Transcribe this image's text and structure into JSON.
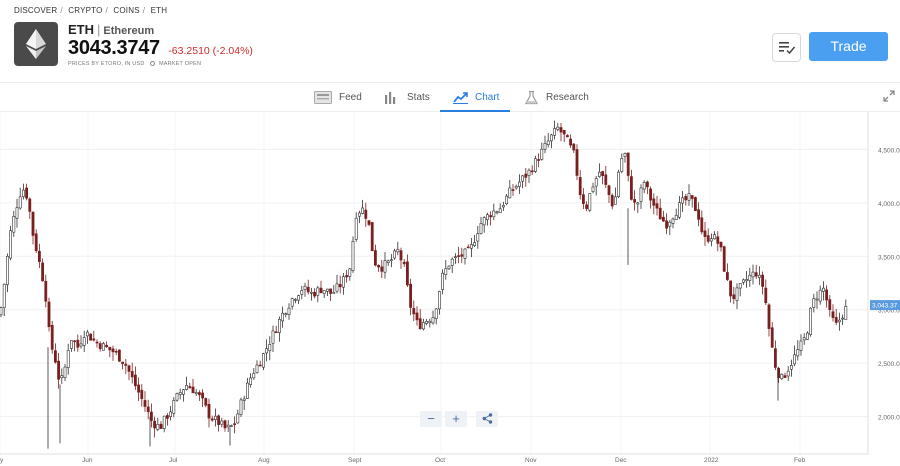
{
  "breadcrumb": [
    "DISCOVER",
    "CRYPTO",
    "COINS",
    "ETH"
  ],
  "breadcrumb_separator": "/",
  "asset": {
    "ticker": "ETH",
    "separator": "|",
    "name": "Ethereum",
    "price": "3043.3747",
    "change": "-63.2510 (-2.04%)",
    "price_source": "PRICES BY ETORO, IN USD",
    "market_status": "MARKET OPEN",
    "logo_icon": "ethereum-logo-icon"
  },
  "actions": {
    "trade_label": "Trade",
    "watchlist_icon": "watchlist-icon"
  },
  "tabs": [
    {
      "label": "Feed",
      "icon": "feed-icon"
    },
    {
      "label": "Stats",
      "icon": "stats-icon"
    },
    {
      "label": "Chart",
      "icon": "chart-icon",
      "active": true
    },
    {
      "label": "Research",
      "icon": "research-icon"
    }
  ],
  "zoom_controls": {
    "zoom_out": "−",
    "zoom_in": "+",
    "share_icon": "share-icon"
  },
  "colors": {
    "accent": "#2a7de1",
    "trade": "#4b9ff1",
    "negative": "#d12b2b",
    "up_candle": "#2f2f2f",
    "down_candle": "#7a1f1f"
  },
  "chart_data": {
    "type": "candlestick",
    "x_tick_labels": [
      "y",
      "Jun",
      "Jul",
      "Aug",
      "Sept",
      "Oct",
      "Nov",
      "Dec",
      "2022",
      "Feb"
    ],
    "y_tick_labels": [
      "4,500.0",
      "4,000.0",
      "3,500.0",
      "3,000.0",
      "2,500.0",
      "2,000.0"
    ],
    "y_ticks": [
      4500,
      4000,
      3500,
      3000,
      2500,
      2000
    ],
    "ylim": [
      1650,
      4850
    ],
    "last_price_label": "3,043.37",
    "last_price": 3043.37,
    "grid": true,
    "close_path": [
      [
        0,
        2950
      ],
      [
        5,
        3300
      ],
      [
        10,
        3700
      ],
      [
        16,
        3950
      ],
      [
        22,
        4150
      ],
      [
        28,
        4050
      ],
      [
        32,
        3750
      ],
      [
        38,
        3500
      ],
      [
        45,
        3200
      ],
      [
        50,
        2700
      ],
      [
        55,
        2550
      ],
      [
        60,
        2300
      ],
      [
        64,
        2400
      ],
      [
        70,
        2750
      ],
      [
        78,
        2650
      ],
      [
        85,
        2800
      ],
      [
        95,
        2700
      ],
      [
        105,
        2650
      ],
      [
        115,
        2600
      ],
      [
        125,
        2500
      ],
      [
        135,
        2300
      ],
      [
        145,
        2100
      ],
      [
        152,
        1950
      ],
      [
        160,
        1900
      ],
      [
        170,
        2050
      ],
      [
        178,
        2200
      ],
      [
        186,
        2300
      ],
      [
        194,
        2250
      ],
      [
        202,
        2150
      ],
      [
        210,
        2000
      ],
      [
        218,
        1950
      ],
      [
        226,
        1880
      ],
      [
        234,
        1920
      ],
      [
        242,
        2150
      ],
      [
        252,
        2400
      ],
      [
        262,
        2550
      ],
      [
        272,
        2750
      ],
      [
        282,
        2950
      ],
      [
        292,
        3100
      ],
      [
        302,
        3200
      ],
      [
        312,
        3150
      ],
      [
        322,
        3200
      ],
      [
        332,
        3150
      ],
      [
        342,
        3250
      ],
      [
        350,
        3400
      ],
      [
        356,
        3900
      ],
      [
        362,
        3950
      ],
      [
        368,
        3850
      ],
      [
        374,
        3450
      ],
      [
        382,
        3400
      ],
      [
        390,
        3450
      ],
      [
        398,
        3550
      ],
      [
        404,
        3400
      ],
      [
        410,
        3050
      ],
      [
        418,
        2850
      ],
      [
        426,
        2900
      ],
      [
        434,
        2950
      ],
      [
        442,
        3300
      ],
      [
        450,
        3450
      ],
      [
        460,
        3500
      ],
      [
        470,
        3550
      ],
      [
        480,
        3800
      ],
      [
        490,
        3900
      ],
      [
        500,
        3950
      ],
      [
        510,
        4100
      ],
      [
        520,
        4200
      ],
      [
        530,
        4300
      ],
      [
        540,
        4450
      ],
      [
        550,
        4600
      ],
      [
        558,
        4700
      ],
      [
        566,
        4600
      ],
      [
        574,
        4450
      ],
      [
        580,
        4100
      ],
      [
        586,
        3950
      ],
      [
        592,
        4150
      ],
      [
        600,
        4300
      ],
      [
        608,
        4100
      ],
      [
        614,
        3950
      ],
      [
        620,
        4400
      ],
      [
        625,
        4450
      ],
      [
        630,
        4100
      ],
      [
        636,
        3950
      ],
      [
        644,
        4200
      ],
      [
        650,
        4050
      ],
      [
        658,
        3900
      ],
      [
        666,
        3800
      ],
      [
        674,
        3900
      ],
      [
        682,
        4000
      ],
      [
        690,
        4050
      ],
      [
        698,
        3900
      ],
      [
        704,
        3650
      ],
      [
        712,
        3700
      ],
      [
        720,
        3600
      ],
      [
        726,
        3300
      ],
      [
        732,
        3100
      ],
      [
        740,
        3200
      ],
      [
        748,
        3300
      ],
      [
        756,
        3350
      ],
      [
        764,
        3200
      ],
      [
        770,
        2750
      ],
      [
        776,
        2450
      ],
      [
        782,
        2350
      ],
      [
        788,
        2450
      ],
      [
        794,
        2550
      ],
      [
        800,
        2650
      ],
      [
        806,
        2750
      ],
      [
        812,
        3050
      ],
      [
        818,
        3150
      ],
      [
        824,
        3200
      ],
      [
        830,
        2950
      ],
      [
        836,
        2850
      ],
      [
        842,
        2950
      ],
      [
        848,
        3043
      ]
    ]
  }
}
